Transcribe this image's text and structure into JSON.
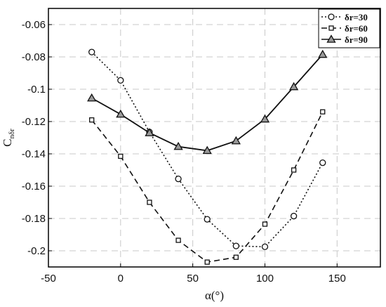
{
  "chart_data": {
    "type": "line",
    "xlabel": "α(°)",
    "ylabel": "C",
    "ylabel_sub": "nδr",
    "xlim": [
      -50,
      180
    ],
    "ylim": [
      -0.21,
      -0.05
    ],
    "xticks": [
      -50,
      0,
      50,
      100,
      150
    ],
    "xtick_labels": [
      "-50",
      "0",
      "50",
      "100",
      "150"
    ],
    "yticks": [
      -0.2,
      -0.18,
      -0.16,
      -0.14,
      -0.12,
      -0.1,
      -0.08,
      -0.06
    ],
    "ytick_labels": [
      "-0.2",
      "-0.18",
      "-0.16",
      "-0.14",
      "-0.12",
      "-0.1",
      "-0.08",
      "-0.06"
    ],
    "grid": true,
    "legend_position": "top-right",
    "x": [
      -20,
      0,
      20,
      40,
      60,
      80,
      100,
      120,
      140
    ],
    "series": [
      {
        "name": "δr=30",
        "values": [
          -0.077,
          -0.0945,
          -0.1265,
          -0.1555,
          -0.1805,
          -0.197,
          -0.1975,
          -0.1785,
          -0.1455
        ],
        "style": "dotted",
        "marker": "circle",
        "color": "#111111"
      },
      {
        "name": "δr=60",
        "values": [
          -0.119,
          -0.1415,
          -0.17,
          -0.1935,
          -0.207,
          -0.204,
          -0.1835,
          -0.15,
          -0.114
        ],
        "style": "dashed",
        "marker": "square",
        "color": "#111111"
      },
      {
        "name": "δr=90",
        "values": [
          -0.1055,
          -0.1155,
          -0.127,
          -0.1355,
          -0.138,
          -0.132,
          -0.1185,
          -0.0985,
          -0.0785
        ],
        "style": "solid",
        "marker": "triangle",
        "color": "#111111"
      }
    ]
  }
}
